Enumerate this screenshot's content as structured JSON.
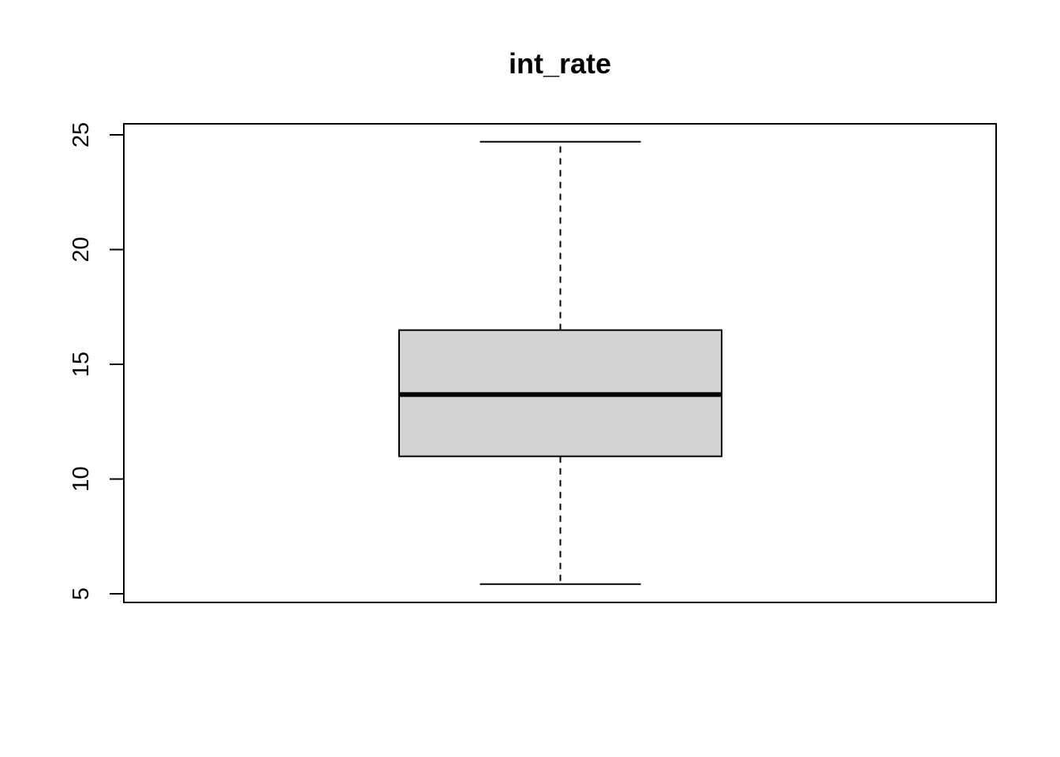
{
  "chart_data": {
    "type": "box",
    "title": "int_rate",
    "xlabel": "",
    "ylabel": "",
    "ylim": [
      5,
      25
    ],
    "y_ticks": [
      5,
      10,
      15,
      20,
      25
    ],
    "y_tick_labels": [
      "5",
      "10",
      "15",
      "20",
      "25"
    ],
    "box": {
      "lower_whisker": 5.42,
      "q1": 10.99,
      "median": 13.68,
      "q3": 16.49,
      "upper_whisker": 24.7
    },
    "box_fill_color": "#d3d3d3",
    "line_color": "#000000",
    "grid": false
  }
}
